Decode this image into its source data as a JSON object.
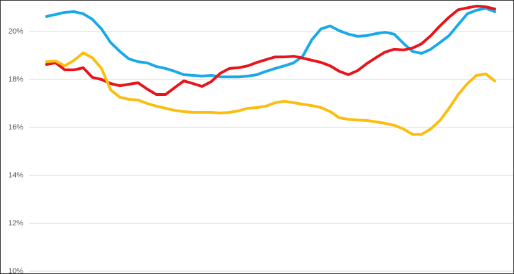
{
  "chart_data": {
    "type": "line",
    "categories": [
      null,
      null,
      null,
      null,
      null,
      null,
      null,
      null,
      null,
      null,
      null,
      null,
      null,
      null,
      null,
      null,
      null,
      null,
      null,
      null,
      null,
      null,
      null,
      null,
      null,
      null,
      null,
      null,
      null,
      null,
      null,
      null,
      null,
      null,
      null,
      null,
      null,
      null,
      null,
      null,
      null,
      null,
      null,
      null,
      null,
      null,
      null,
      null,
      null,
      null
    ],
    "series": [
      {
        "color": "#1aa9e8",
        "values": [
          20.63,
          20.71,
          20.8,
          20.83,
          20.74,
          20.51,
          20.11,
          19.54,
          19.17,
          18.86,
          18.74,
          18.69,
          18.54,
          18.46,
          18.34,
          18.2,
          18.17,
          18.14,
          18.17,
          18.11,
          18.11,
          18.11,
          18.14,
          18.2,
          18.34,
          18.46,
          18.57,
          18.69,
          18.97,
          19.66,
          20.11,
          20.23,
          20.03,
          19.89,
          19.8,
          19.83,
          19.91,
          19.97,
          19.89,
          19.51,
          19.17,
          19.09,
          19.26,
          19.54,
          19.83,
          20.29,
          20.74,
          20.89,
          20.97,
          20.83
        ]
      },
      {
        "color": "#e8141a",
        "values": [
          18.63,
          18.69,
          18.4,
          18.4,
          18.49,
          18.09,
          18.0,
          17.83,
          17.74,
          17.8,
          17.86,
          17.6,
          17.37,
          17.37,
          17.66,
          17.94,
          17.83,
          17.71,
          17.91,
          18.26,
          18.46,
          18.49,
          18.57,
          18.71,
          18.83,
          18.94,
          18.94,
          18.97,
          18.89,
          18.8,
          18.71,
          18.57,
          18.34,
          18.2,
          18.37,
          18.66,
          18.91,
          19.14,
          19.26,
          19.23,
          19.31,
          19.49,
          19.83,
          20.23,
          20.6,
          20.91,
          20.99,
          21.06,
          21.03,
          20.94
        ]
      },
      {
        "color": "#fbbd0e",
        "values": [
          18.74,
          18.77,
          18.57,
          18.8,
          19.11,
          18.91,
          18.46,
          17.57,
          17.26,
          17.17,
          17.14,
          17.0,
          16.89,
          16.8,
          16.71,
          16.66,
          16.63,
          16.63,
          16.63,
          16.6,
          16.63,
          16.69,
          16.8,
          16.83,
          16.89,
          17.03,
          17.09,
          17.03,
          16.97,
          16.91,
          16.83,
          16.66,
          16.4,
          16.34,
          16.31,
          16.29,
          16.23,
          16.17,
          16.09,
          15.94,
          15.71,
          15.71,
          15.94,
          16.29,
          16.8,
          17.37,
          17.83,
          18.17,
          18.23,
          17.94
        ]
      }
    ],
    "ylim": [
      10,
      21.3
    ],
    "yticks": [
      {
        "value": 10,
        "label": "10%"
      },
      {
        "value": 12,
        "label": "12%"
      },
      {
        "value": 14,
        "label": "14%"
      },
      {
        "value": 16,
        "label": "16%"
      },
      {
        "value": 18,
        "label": "18%"
      },
      {
        "value": 20,
        "label": "20%"
      }
    ],
    "grid": true
  }
}
